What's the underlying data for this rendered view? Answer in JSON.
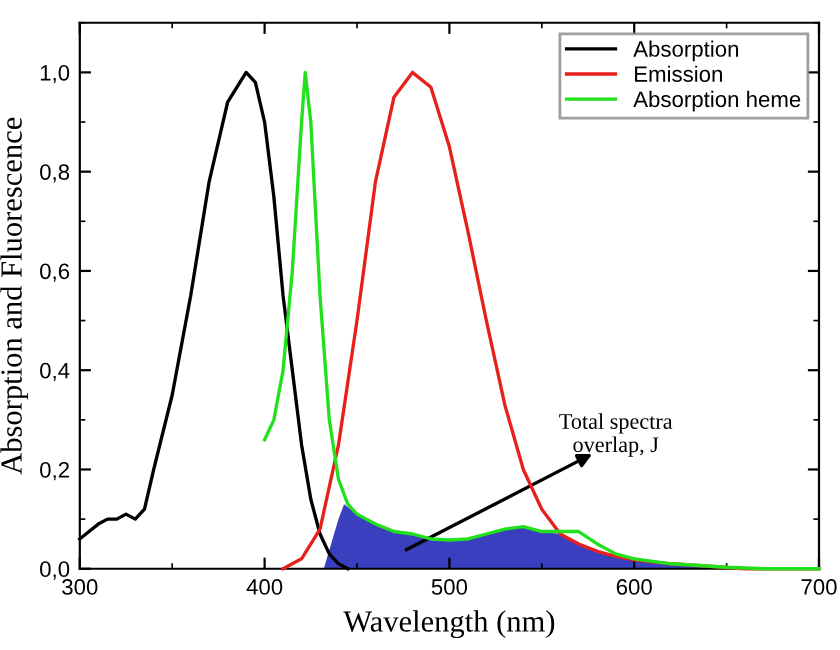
{
  "chart_data": {
    "type": "line",
    "xlabel": "Wavelength (nm)",
    "ylabel": "Absorption and Fluorescence",
    "xlim": [
      300,
      700
    ],
    "ylim": [
      0,
      1.1
    ],
    "xticks": [
      300,
      400,
      500,
      600,
      700
    ],
    "yticks": [
      {
        "value": 0,
        "label": "0,0"
      },
      {
        "value": 0.2,
        "label": "0,2"
      },
      {
        "value": 0.4,
        "label": "0,4"
      },
      {
        "value": 0.6,
        "label": "0,6"
      },
      {
        "value": 0.8,
        "label": "0,8"
      },
      {
        "value": 1.0,
        "label": "1,0"
      }
    ],
    "legend": "top right",
    "grid": false,
    "series": [
      {
        "type": "area",
        "color": "#3a3fc0",
        "x": [
          432,
          436,
          440,
          443,
          450,
          460,
          470,
          480,
          490,
          500,
          510,
          520,
          530,
          540,
          550,
          560,
          570,
          580,
          590,
          600,
          620,
          640,
          650
        ],
        "values": [
          0,
          0.05,
          0.1,
          0.13,
          0.11,
          0.09,
          0.075,
          0.07,
          0.06,
          0.058,
          0.06,
          0.07,
          0.08,
          0.085,
          0.075,
          0.07,
          0.05,
          0.035,
          0.025,
          0.018,
          0.01,
          0.005,
          0
        ]
      },
      {
        "name": "Absorption",
        "color": "#000000",
        "x": [
          300,
          305,
          310,
          315,
          320,
          325,
          330,
          335,
          340,
          350,
          360,
          370,
          380,
          390,
          395,
          400,
          405,
          410,
          415,
          420,
          425,
          430,
          435,
          440,
          445
        ],
        "values": [
          0.06,
          0.075,
          0.09,
          0.1,
          0.1,
          0.11,
          0.1,
          0.12,
          0.2,
          0.35,
          0.55,
          0.78,
          0.94,
          1.0,
          0.98,
          0.9,
          0.75,
          0.55,
          0.4,
          0.25,
          0.14,
          0.07,
          0.03,
          0.01,
          0
        ]
      },
      {
        "name": "Emission",
        "color": "#e8201c",
        "x": [
          410,
          420,
          430,
          440,
          450,
          460,
          470,
          480,
          490,
          500,
          510,
          520,
          530,
          540,
          550,
          560,
          570,
          580,
          590,
          600,
          620,
          640,
          660,
          700
        ],
        "values": [
          0,
          0.02,
          0.08,
          0.25,
          0.5,
          0.78,
          0.95,
          1.0,
          0.97,
          0.85,
          0.68,
          0.5,
          0.33,
          0.2,
          0.12,
          0.07,
          0.05,
          0.035,
          0.025,
          0.018,
          0.01,
          0.005,
          0,
          0
        ]
      },
      {
        "name": "Absorption heme",
        "color": "#22e01c",
        "x": [
          400,
          405,
          410,
          415,
          420,
          422,
          425,
          430,
          435,
          440,
          445,
          450,
          460,
          470,
          480,
          490,
          500,
          510,
          520,
          530,
          540,
          550,
          560,
          570,
          580,
          590,
          600,
          620,
          650,
          670,
          700
        ],
        "values": [
          0.26,
          0.3,
          0.4,
          0.6,
          0.9,
          1.0,
          0.9,
          0.55,
          0.3,
          0.18,
          0.13,
          0.11,
          0.09,
          0.075,
          0.07,
          0.06,
          0.058,
          0.06,
          0.07,
          0.08,
          0.085,
          0.075,
          0.075,
          0.075,
          0.05,
          0.03,
          0.02,
          0.01,
          0.003,
          0,
          0
        ]
      }
    ],
    "annotations": [
      "Total spectra\noverlap, J"
    ]
  }
}
